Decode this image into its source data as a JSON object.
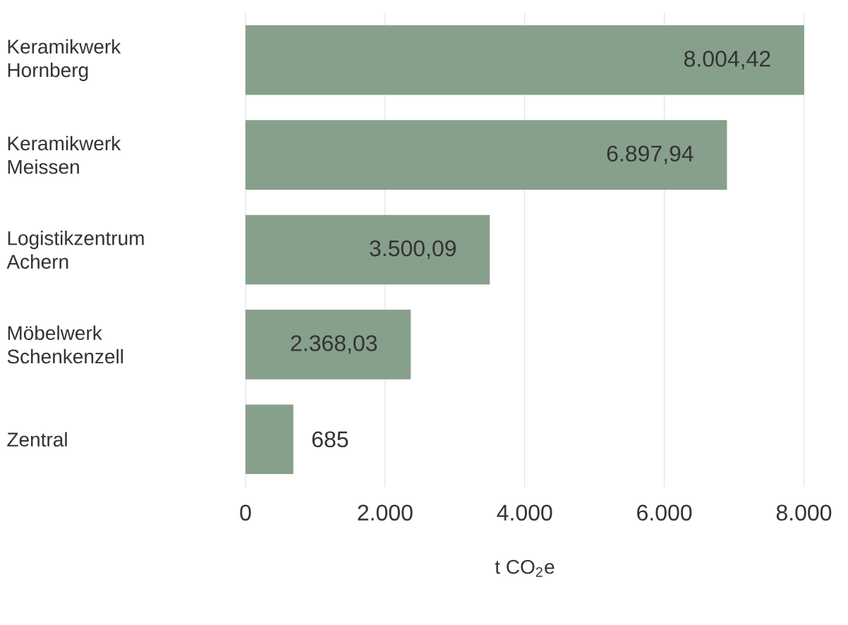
{
  "chart_data": {
    "type": "bar",
    "orientation": "horizontal",
    "categories": [
      "Keramikwerk Hornberg",
      "Keramikwerk Meissen",
      "Logistikzentrum Achern",
      "Möbelwerk Schenkenzell",
      "Zentral"
    ],
    "values": [
      8004.42,
      6897.94,
      3500.09,
      2368.03,
      685
    ],
    "value_labels": [
      "8.004,42",
      "6.897,94",
      "3.500,09",
      "2.368,03",
      "685"
    ],
    "color": "#87a08c",
    "xlim": [
      0,
      8005
    ],
    "xticks": [
      {
        "value": 0,
        "label": "0"
      },
      {
        "value": 2000,
        "label": "2.000"
      },
      {
        "value": 4000,
        "label": "4.000"
      },
      {
        "value": 6000,
        "label": "6.000"
      },
      {
        "value": 8000,
        "label": "8.000"
      }
    ],
    "xlabel": "t CO$_{2}$e",
    "grid": "x"
  }
}
